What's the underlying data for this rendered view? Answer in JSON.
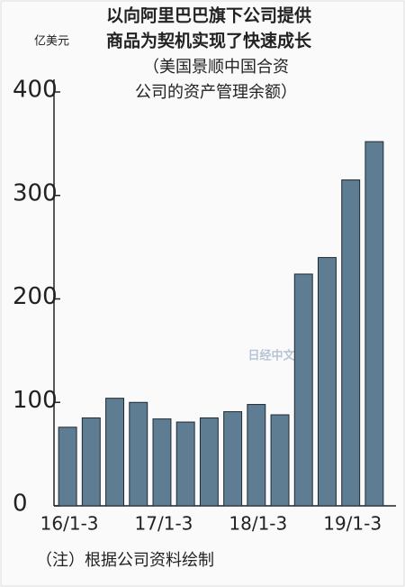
{
  "chart_data": {
    "type": "bar",
    "title": [
      "以向阿里巴巴旗下公司提供",
      "商品为契机实现了快速成长"
    ],
    "subtitle": [
      "（美国景顺中国合资",
      "公司的资产管理余额）"
    ],
    "y_label": "亿美元",
    "note": "（注）根据公司资料绘制",
    "watermark": "日经中文网",
    "categories": [
      "16/1-3",
      null,
      null,
      null,
      "17/1-3",
      null,
      null,
      null,
      "18/1-3",
      null,
      null,
      null,
      "19/1-3",
      null
    ],
    "values": [
      76,
      85,
      104,
      100,
      84,
      81,
      85,
      91,
      98,
      88,
      224,
      240,
      315,
      352
    ],
    "color": "#5f7d92",
    "ylim": [
      0,
      400
    ],
    "yticks": [
      0,
      100,
      200,
      300,
      400
    ]
  }
}
